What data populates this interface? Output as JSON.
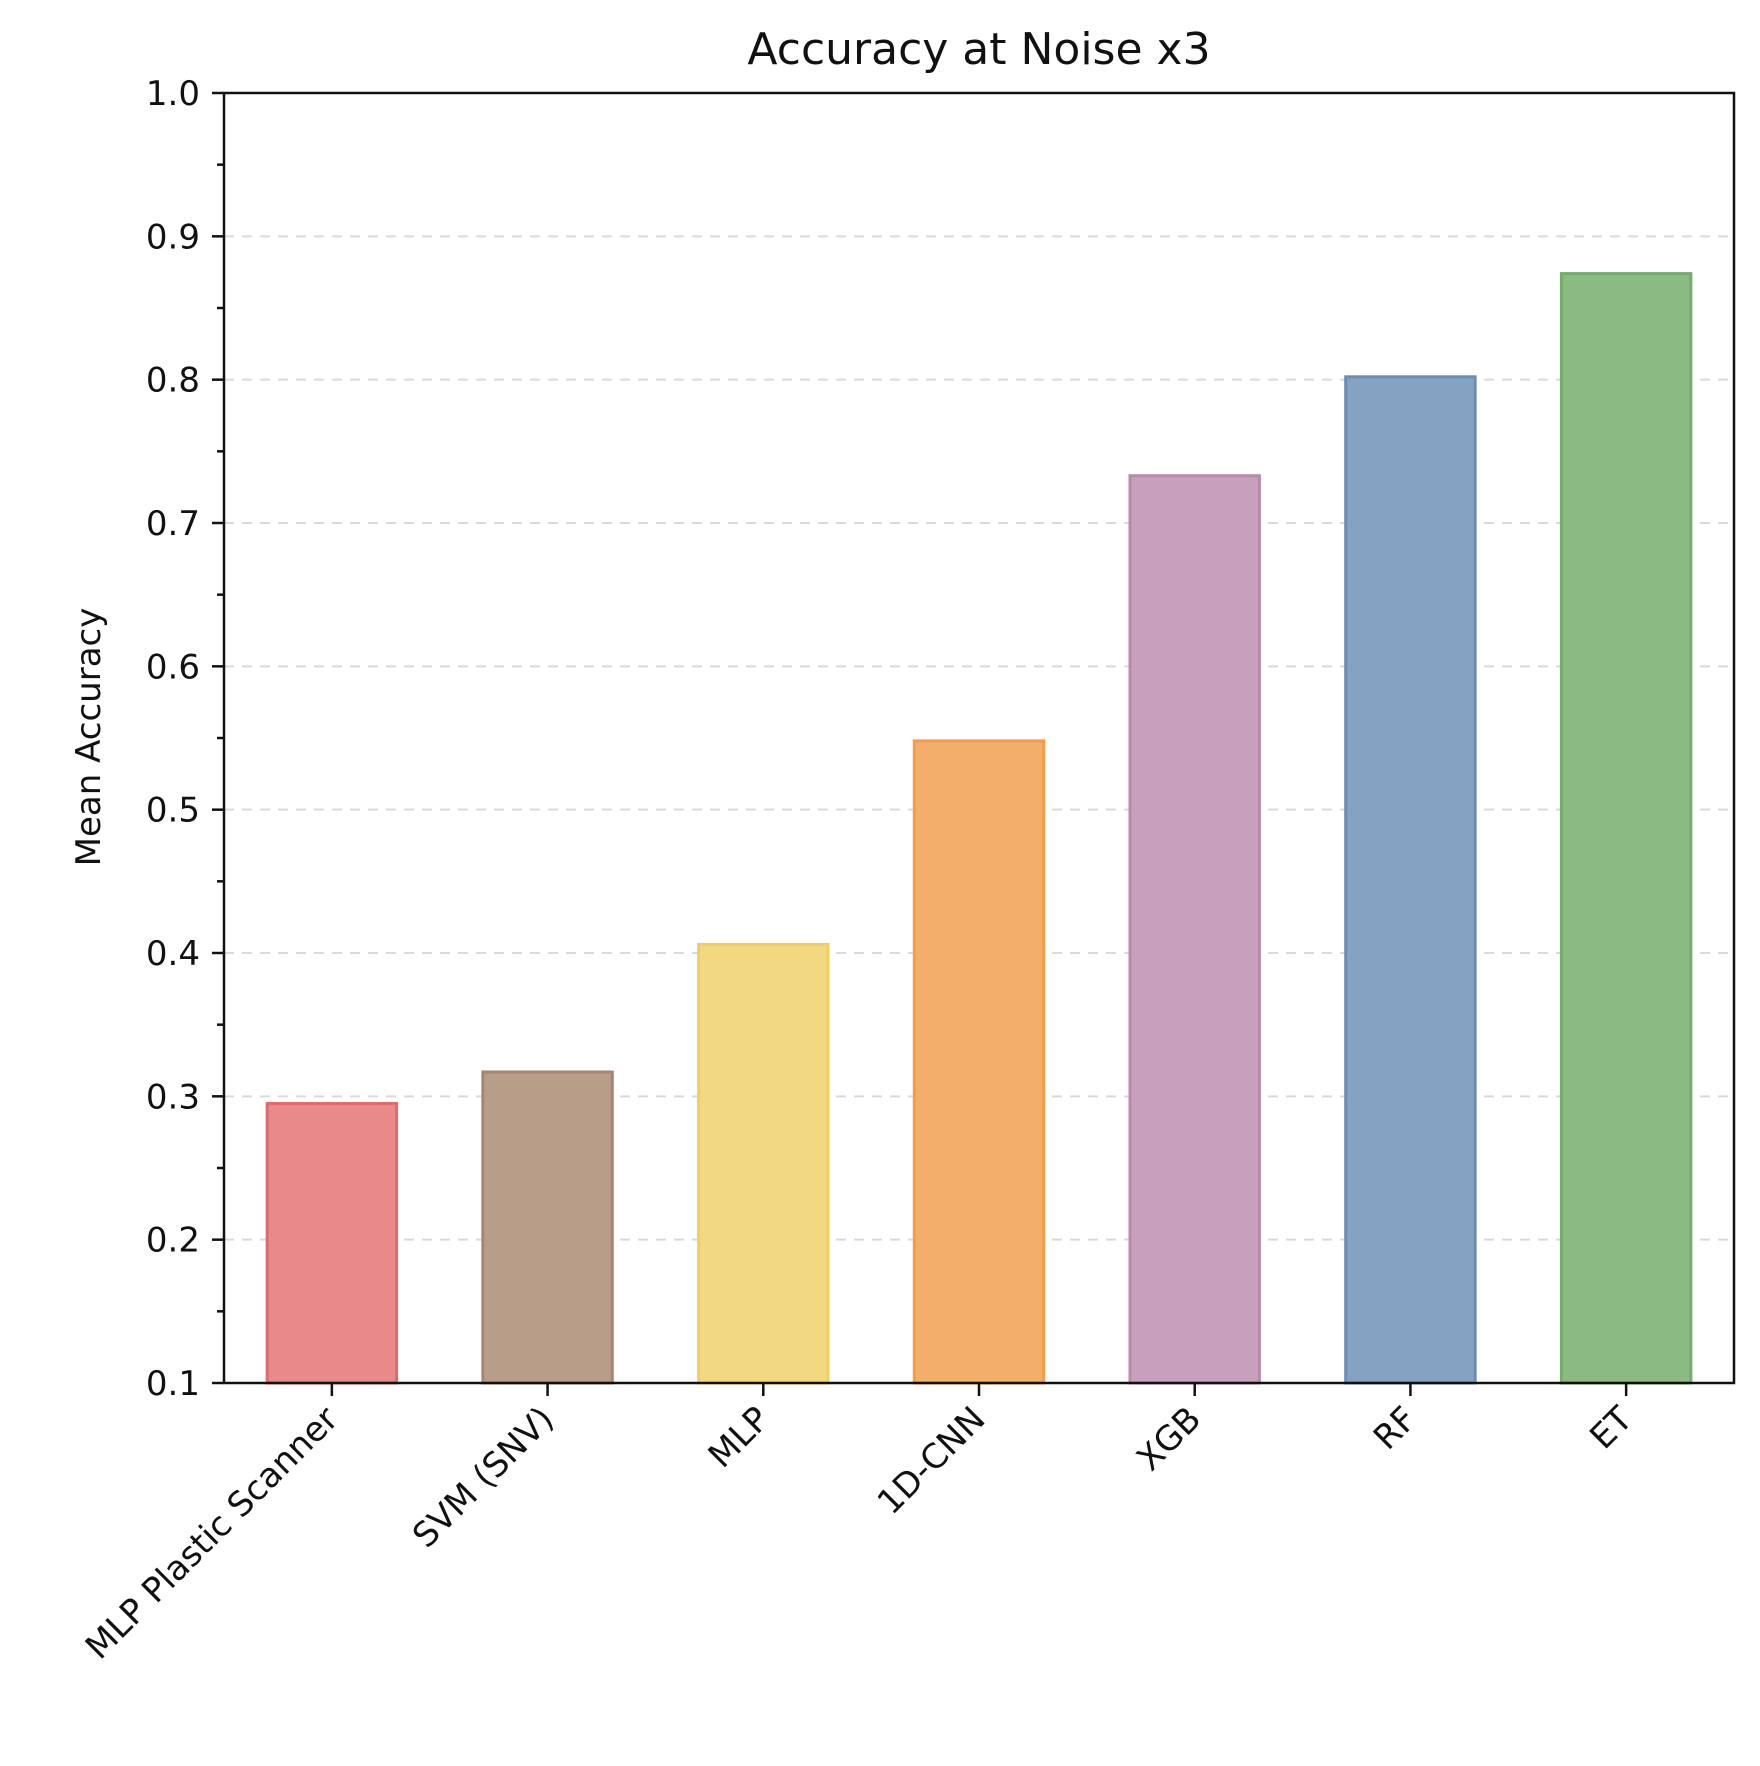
{
  "chart_data": {
    "type": "bar",
    "title": "Accuracy at Noise x3",
    "xlabel": "",
    "ylabel": "Mean Accuracy",
    "ylim": [
      0.1,
      1.0
    ],
    "yticks": [
      0.1,
      0.2,
      0.3,
      0.4,
      0.5,
      0.6,
      0.7,
      0.8,
      0.9,
      1.0
    ],
    "ytick_labels": [
      "0.1",
      "0.2",
      "0.3",
      "0.4",
      "0.5",
      "0.6",
      "0.7",
      "0.8",
      "0.9",
      "1.0"
    ],
    "grid": "horizontal dashed",
    "categories": [
      "MLP Plastic Scanner",
      "SVM (SNV)",
      "MLP",
      "1D-CNN",
      "XGB",
      "RF",
      "ET"
    ],
    "values": [
      0.295,
      0.317,
      0.406,
      0.548,
      0.733,
      0.802,
      0.874
    ],
    "colors": [
      "#e8898a",
      "#b89d89",
      "#f2d880",
      "#f4ae6c",
      "#c7a0bd",
      "#84a2c1",
      "#8bbb82"
    ],
    "edge_colors": [
      "#e06a6e",
      "#a88571",
      "#f0cf60",
      "#f39c4a",
      "#b98aac",
      "#6b8db3",
      "#74ad6b"
    ]
  }
}
